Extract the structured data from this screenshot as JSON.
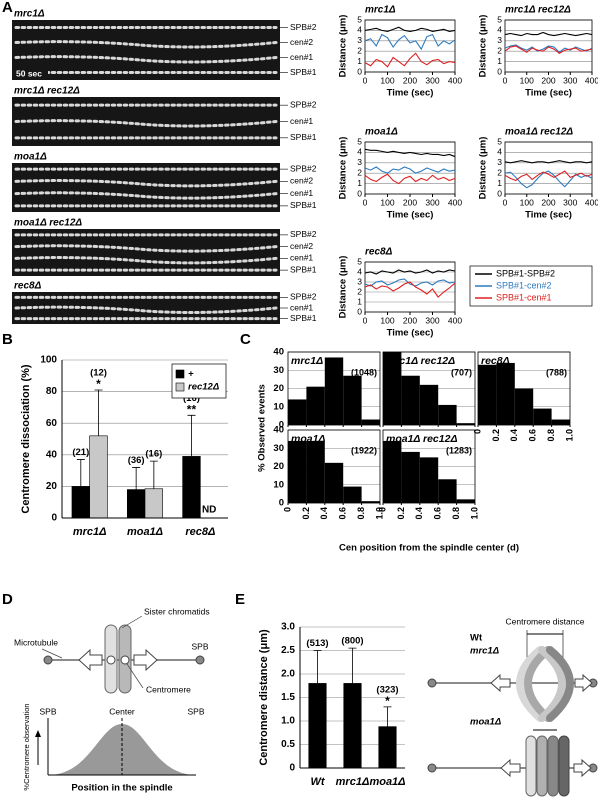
{
  "panel_labels": [
    "A",
    "B",
    "C",
    "D",
    "E"
  ],
  "kymographs": [
    {
      "title": "mrc1Δ",
      "labels": [
        "SPB#2",
        "cen#2",
        "cen#1",
        "SPB#1"
      ],
      "scale": "50 sec"
    },
    {
      "title": "mrc1Δ rec12Δ",
      "labels": [
        "SPB#2",
        "cen#1",
        "SPB#1"
      ]
    },
    {
      "title": "moa1Δ",
      "labels": [
        "SPB#2",
        "cen#2",
        "cen#1",
        "SPB#1"
      ]
    },
    {
      "title": "moa1Δ rec12Δ",
      "labels": [
        "SPB#2",
        "cen#2",
        "cen#1",
        "SPB#1"
      ]
    },
    {
      "title": "rec8Δ",
      "labels": [
        "SPB#2",
        "cen#1",
        "SPB#1"
      ]
    }
  ],
  "chart_data": [
    {
      "type": "line",
      "title": "mrc1Δ",
      "xlabel": "Time (sec)",
      "ylabel": "Distance (μm)",
      "x": [
        0,
        25,
        50,
        75,
        100,
        125,
        150,
        175,
        200,
        225,
        250,
        275,
        300,
        325,
        350,
        375,
        400
      ],
      "xlim": [
        0,
        400
      ],
      "xticks": [
        0,
        100,
        200,
        300,
        400
      ],
      "ylim": [
        0,
        5
      ],
      "yticks": [
        0,
        1,
        2,
        3,
        4,
        5
      ],
      "grid": true,
      "series": [
        {
          "color": "#000000",
          "values": [
            4.0,
            4.1,
            4.2,
            4.0,
            3.9,
            4.1,
            4.3,
            4.0,
            3.9,
            4.0,
            4.2,
            4.1,
            3.9,
            4.0,
            4.1,
            3.9,
            4.0
          ]
        },
        {
          "color": "#2e7bbf",
          "values": [
            3.0,
            3.2,
            2.5,
            3.6,
            3.3,
            2.4,
            3.1,
            3.5,
            2.8,
            3.0,
            2.2,
            3.4,
            3.6,
            2.5,
            3.0,
            2.7,
            3.1
          ]
        },
        {
          "color": "#e02020",
          "values": [
            0.9,
            0.6,
            1.2,
            1.0,
            0.5,
            1.4,
            1.0,
            0.6,
            1.3,
            1.8,
            1.0,
            0.7,
            1.1,
            1.2,
            0.8,
            1.0,
            0.9
          ]
        }
      ]
    },
    {
      "type": "line",
      "title": "mrc1Δ rec12Δ",
      "xlabel": "Time (sec)",
      "ylabel": "Distance (μm)",
      "x": [
        0,
        25,
        50,
        75,
        100,
        125,
        150,
        175,
        200,
        225,
        250,
        275,
        300,
        325,
        350,
        375,
        400
      ],
      "xlim": [
        0,
        400
      ],
      "xticks": [
        0,
        100,
        200,
        300,
        400
      ],
      "ylim": [
        0,
        5
      ],
      "yticks": [
        0,
        1,
        2,
        3,
        4,
        5
      ],
      "grid": true,
      "series": [
        {
          "color": "#000000",
          "values": [
            3.6,
            3.7,
            3.6,
            3.5,
            3.7,
            3.6,
            3.6,
            3.8,
            3.6,
            3.5,
            3.6,
            3.7,
            3.6,
            3.5,
            3.6,
            3.7,
            3.6
          ]
        },
        {
          "color": "#2e7bbf",
          "values": [
            2.3,
            2.5,
            2.6,
            2.3,
            2.1,
            2.4,
            2.0,
            2.2,
            2.5,
            2.4,
            1.9,
            2.3,
            2.1,
            2.4,
            2.2,
            2.0,
            2.3
          ]
        },
        {
          "color": "#e02020",
          "values": [
            2.0,
            2.4,
            2.5,
            2.2,
            1.9,
            2.3,
            2.1,
            2.0,
            2.4,
            2.2,
            1.8,
            2.1,
            2.2,
            2.3,
            2.0,
            2.1,
            2.2
          ]
        }
      ]
    },
    {
      "type": "line",
      "title": "moa1Δ",
      "xlabel": "Time (sec)",
      "ylabel": "Distance (μm)",
      "x": [
        0,
        25,
        50,
        75,
        100,
        125,
        150,
        175,
        200,
        225,
        250,
        275,
        300,
        325,
        350,
        375,
        400
      ],
      "xlim": [
        0,
        400
      ],
      "xticks": [
        0,
        100,
        200,
        300,
        400
      ],
      "ylim": [
        0,
        5
      ],
      "yticks": [
        0,
        1,
        2,
        3,
        4,
        5
      ],
      "grid": true,
      "series": [
        {
          "color": "#000000",
          "values": [
            4.3,
            4.2,
            4.2,
            4.1,
            4.0,
            4.1,
            4.0,
            3.9,
            4.0,
            3.9,
            3.8,
            3.9,
            3.8,
            3.8,
            3.7,
            3.8,
            3.6
          ]
        },
        {
          "color": "#2e7bbf",
          "values": [
            2.5,
            2.3,
            2.6,
            2.2,
            2.0,
            2.4,
            2.3,
            2.6,
            2.4,
            2.0,
            2.2,
            2.5,
            2.3,
            2.1,
            2.4,
            2.2,
            2.3
          ]
        },
        {
          "color": "#e02020",
          "values": [
            1.8,
            1.4,
            1.2,
            1.6,
            1.9,
            1.3,
            1.0,
            1.5,
            1.7,
            1.2,
            1.5,
            1.3,
            1.8,
            1.4,
            1.6,
            1.3,
            1.5
          ]
        }
      ]
    },
    {
      "type": "line",
      "title": "moa1Δ rec12Δ",
      "xlabel": "Time (sec)",
      "ylabel": "Distance (μm)",
      "x": [
        0,
        25,
        50,
        75,
        100,
        125,
        150,
        175,
        200,
        225,
        250,
        275,
        300,
        325,
        350,
        375,
        400
      ],
      "xlim": [
        0,
        400
      ],
      "xticks": [
        0,
        100,
        200,
        300,
        400
      ],
      "ylim": [
        0,
        5
      ],
      "yticks": [
        0,
        1,
        2,
        3,
        4,
        5
      ],
      "grid": true,
      "series": [
        {
          "color": "#000000",
          "values": [
            3.1,
            3.0,
            3.1,
            3.2,
            3.1,
            3.0,
            3.1,
            3.1,
            3.0,
            3.1,
            3.2,
            3.1,
            3.0,
            3.1,
            3.1,
            3.0,
            3.1
          ]
        },
        {
          "color": "#2e7bbf",
          "values": [
            2.0,
            2.1,
            1.6,
            1.0,
            0.6,
            0.9,
            1.5,
            2.0,
            2.2,
            1.8,
            1.2,
            0.7,
            1.3,
            1.9,
            1.6,
            1.8,
            1.5
          ]
        },
        {
          "color": "#e02020",
          "values": [
            1.8,
            1.5,
            1.3,
            1.7,
            1.9,
            1.4,
            1.8,
            2.1,
            1.9,
            1.6,
            1.9,
            2.2,
            1.6,
            1.8,
            2.0,
            1.7,
            1.9
          ]
        }
      ]
    },
    {
      "type": "line",
      "title": "rec8Δ",
      "xlabel": "Time (sec)",
      "ylabel": "Distance (μm)",
      "x": [
        0,
        25,
        50,
        75,
        100,
        125,
        150,
        175,
        200,
        225,
        250,
        275,
        300,
        325,
        350,
        375,
        400
      ],
      "xlim": [
        0,
        400
      ],
      "xticks": [
        0,
        100,
        200,
        300,
        400
      ],
      "ylim": [
        0,
        5
      ],
      "yticks": [
        0,
        1,
        2,
        3,
        4,
        5
      ],
      "grid": true,
      "series": [
        {
          "name": "SPB#1-SPB#2",
          "color": "#000000",
          "values": [
            3.9,
            4.0,
            3.8,
            4.1,
            4.0,
            3.9,
            4.2,
            4.0,
            4.1,
            3.9,
            4.0,
            4.2,
            3.9,
            4.1,
            4.0,
            4.2,
            4.1
          ]
        },
        {
          "name": "SPB#1-cen#2",
          "color": "#2e7bbf",
          "values": [
            2.8,
            2.6,
            3.0,
            3.1,
            2.7,
            2.9,
            3.2,
            3.3,
            2.8,
            2.6,
            2.9,
            3.0,
            2.7,
            3.1,
            3.2,
            2.9,
            3.0
          ]
        },
        {
          "name": "SPB#1-cen#1",
          "color": "#e02020",
          "values": [
            2.5,
            2.7,
            2.3,
            2.6,
            2.5,
            2.1,
            2.4,
            2.8,
            3.0,
            2.5,
            2.2,
            1.8,
            2.3,
            1.5,
            2.0,
            2.4,
            2.9
          ]
        }
      ]
    },
    {
      "type": "bar",
      "ylabel": "Centromere dissociation (%)",
      "categories": [
        "mrc1Δ",
        "moa1Δ",
        "rec8Δ"
      ],
      "ylim": [
        0,
        100
      ],
      "yticks": [
        0,
        20,
        40,
        60,
        80,
        100
      ],
      "grid": true,
      "legend": "top-right",
      "series": [
        {
          "name": "+",
          "color": "#000000",
          "values": [
            20,
            18,
            39
          ],
          "errors": [
            17,
            14,
            26
          ],
          "n_labels": [
            "(21)",
            "(36)",
            "(16)"
          ],
          "significance": [
            null,
            null,
            "**"
          ]
        },
        {
          "name": "rec12Δ",
          "color": "#c8c8c8",
          "values": [
            52,
            18.5,
            null
          ],
          "errors": [
            29,
            17.5,
            null
          ],
          "n_labels": [
            "(12)",
            "(16)",
            null
          ],
          "significance": [
            "*",
            null,
            null
          ],
          "value_labels": [
            null,
            null,
            "ND"
          ]
        }
      ]
    },
    {
      "type": "histogram",
      "title": "mrc1Δ",
      "count_label": "(1048)",
      "color": "#000000",
      "bins": [
        0,
        0.2,
        0.4,
        0.6,
        0.8,
        1
      ],
      "values": [
        14,
        21,
        37,
        27,
        3
      ],
      "xlim": [
        0,
        1
      ],
      "xticks": [
        0,
        0.2,
        0.4,
        0.6,
        0.8,
        {
          "value": 1,
          "label": "1.0"
        }
      ],
      "ylim": [
        0,
        40
      ],
      "yticks": [
        0,
        10,
        20,
        30,
        40
      ],
      "grid": true,
      "xtick_labels": false
    },
    {
      "type": "histogram",
      "title": "mrc1Δ rec12Δ",
      "count_label": "(707)",
      "color": "#000000",
      "bins": [
        0,
        0.2,
        0.4,
        0.6,
        0.8,
        1
      ],
      "values": [
        40,
        27,
        22,
        11,
        1
      ],
      "xlim": [
        0,
        1
      ],
      "xticks": [
        0,
        0.2,
        0.4,
        0.6,
        0.8,
        {
          "value": 1,
          "label": "1.0"
        }
      ],
      "ylim": [
        0,
        40
      ],
      "yticks": [
        0,
        10,
        20,
        30,
        40
      ],
      "grid": true,
      "xtick_labels": false,
      "ytick_labels": false
    },
    {
      "type": "histogram",
      "title": "rec8Δ",
      "count_label": "(788)",
      "color": "#000000",
      "bins": [
        0,
        0.2,
        0.4,
        0.6,
        0.8,
        1
      ],
      "values": [
        33,
        34,
        20,
        9,
        3
      ],
      "xlim": [
        0,
        1
      ],
      "xticks": [
        0,
        0.2,
        0.4,
        0.6,
        0.8,
        {
          "value": 1,
          "label": "1.0"
        }
      ],
      "ylim": [
        0,
        40
      ],
      "yticks": [
        0,
        10,
        20,
        30,
        40
      ],
      "grid": true,
      "ytick_labels": false
    },
    {
      "type": "histogram",
      "title": "moa1Δ",
      "count_label": "(1922)",
      "color": "#000000",
      "bins": [
        0,
        0.2,
        0.4,
        0.6,
        0.8,
        1
      ],
      "values": [
        34,
        34,
        22,
        9,
        1
      ],
      "xlim": [
        0,
        1
      ],
      "xticks": [
        0,
        0.2,
        0.4,
        0.6,
        0.8,
        {
          "value": 1,
          "label": "1.0"
        }
      ],
      "ylim": [
        0,
        40
      ],
      "yticks": [
        0,
        10,
        20,
        30,
        40
      ],
      "grid": true
    },
    {
      "type": "histogram",
      "title": "moa1Δ rec12Δ",
      "count_label": "(1283)",
      "color": "#000000",
      "bins": [
        0,
        0.2,
        0.4,
        0.6,
        0.8,
        1
      ],
      "values": [
        34,
        28,
        25,
        13,
        2
      ],
      "xlim": [
        0,
        1
      ],
      "xticks": [
        0,
        0.2,
        0.4,
        0.6,
        0.8,
        {
          "value": 1,
          "label": "1.0"
        }
      ],
      "ylim": [
        0,
        40
      ],
      "yticks": [
        0,
        10,
        20,
        30,
        40
      ],
      "grid": true,
      "ytick_labels": false
    },
    {
      "type": "bar",
      "ylabel": "Centromere distance (μm)",
      "categories": [
        "Wt",
        "mrc1Δ",
        "moa1Δ"
      ],
      "ylim": [
        0,
        3
      ],
      "yticks": [
        0,
        0.5,
        {
          "value": 1,
          "label": "1.0"
        },
        1.5,
        {
          "value": 2,
          "label": "2.0"
        },
        2.5,
        {
          "value": 3,
          "label": "3.0"
        }
      ],
      "grid": true,
      "series": [
        {
          "color": "#000000",
          "values": [
            1.8,
            1.8,
            0.88
          ],
          "errors": [
            0.7,
            0.75,
            0.42
          ],
          "n_labels": [
            "(513)",
            "(800)",
            "(323)"
          ],
          "significance": [
            null,
            null,
            "*"
          ]
        }
      ]
    }
  ],
  "panel_c": {
    "ylabel": "% Observed events",
    "xlabel": "Cen position from the spindle center (d)"
  },
  "diagram_d": {
    "top": {
      "microtubule": "Microtubule",
      "sister_chromatids": "Sister chromatids",
      "spb": "SPB",
      "centromere": "Centromere"
    },
    "bottom": {
      "spb_left": "SPB",
      "center": "Center",
      "spb_right": "SPB",
      "ylabel": "%Centromere observation",
      "xlabel": "Position in the spindle"
    }
  },
  "diagram_e": {
    "wt": "Wt",
    "mrc1": "mrc1Δ",
    "distance": "Centromere distance",
    "moa1": "moa1Δ"
  }
}
